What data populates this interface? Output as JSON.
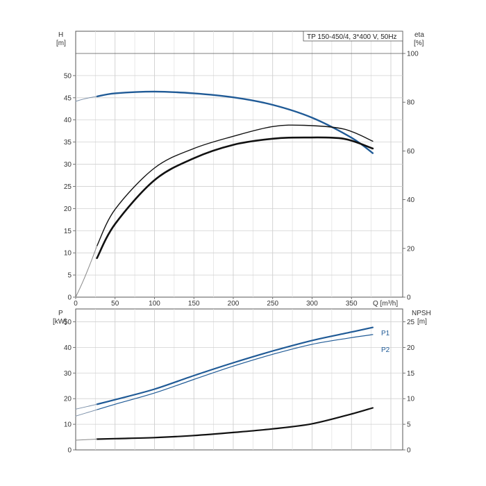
{
  "chart_data": [
    {
      "type": "line",
      "title": "TP 150-450/4, 3*400 V, 50Hz",
      "xlabel": "Q [m³/h]",
      "x_ticks": [
        0,
        50,
        100,
        150,
        200,
        250,
        300,
        350
      ],
      "xlim": [
        0,
        415
      ],
      "left_axis": {
        "name": "H",
        "unit": "[m]",
        "ylim": [
          0,
          55
        ],
        "ticks": [
          0,
          5,
          10,
          15,
          20,
          25,
          30,
          35,
          40,
          45,
          50
        ]
      },
      "right_axis": {
        "name": "eta",
        "unit": "[%]",
        "ylim": [
          0,
          100
        ],
        "ticks": [
          0,
          20,
          40,
          60,
          80,
          100
        ]
      },
      "grid": true,
      "series": [
        {
          "axis": "left",
          "color": "#1f5a96",
          "width": 2.4,
          "style": "operating",
          "x": [
            27,
            50,
            100,
            150,
            200,
            250,
            300,
            350,
            377
          ],
          "y": [
            45.3,
            46.0,
            46.4,
            46.0,
            45.1,
            43.4,
            40.5,
            36.0,
            32.5
          ]
        },
        {
          "axis": "left",
          "color": "#7a8fa8",
          "width": 1.0,
          "style": "extension",
          "x": [
            0,
            10,
            20,
            27
          ],
          "y": [
            44.2,
            44.7,
            45.1,
            45.3
          ]
        },
        {
          "axis": "right",
          "color": "#111111",
          "width": 1.4,
          "style": "operating",
          "x": [
            27,
            50,
            100,
            150,
            200,
            250,
            290,
            340,
            377
          ],
          "y": [
            21,
            36,
            53,
            61,
            66,
            70,
            70.5,
            69,
            64
          ]
        },
        {
          "axis": "right",
          "color": "#111111",
          "width": 2.6,
          "style": "operating",
          "x": [
            27,
            50,
            100,
            150,
            200,
            250,
            290,
            340,
            377
          ],
          "y": [
            16,
            30,
            48,
            57,
            62.5,
            65,
            65.5,
            65,
            61
          ]
        },
        {
          "axis": "right",
          "color": "#888888",
          "width": 1.0,
          "style": "extension",
          "x": [
            0,
            10,
            20,
            27
          ],
          "y": [
            0,
            7,
            15,
            21
          ]
        }
      ]
    },
    {
      "type": "line",
      "title": "",
      "xlabel": "",
      "x_ticks": [
        0,
        50,
        100,
        150,
        200,
        250,
        300,
        350
      ],
      "xlim": [
        0,
        415
      ],
      "left_axis": {
        "name": "P",
        "unit": "[kW]",
        "ylim": [
          0,
          55
        ],
        "ticks": [
          0,
          10,
          20,
          30,
          40,
          50
        ]
      },
      "right_axis": {
        "name": "NPSH",
        "unit": "[m]",
        "ylim": [
          0,
          27.5
        ],
        "ticks": [
          0,
          5,
          10,
          15,
          20,
          25
        ]
      },
      "grid": true,
      "series": [
        {
          "name": "P1",
          "axis": "left",
          "color": "#1f5a96",
          "width": 2.2,
          "style": "operating",
          "x": [
            27,
            50,
            100,
            150,
            200,
            250,
            300,
            350,
            377
          ],
          "y": [
            17.8,
            19.6,
            23.7,
            29.0,
            34.0,
            38.6,
            42.7,
            46.0,
            47.8
          ]
        },
        {
          "name": "P2",
          "axis": "left",
          "color": "#1f5a96",
          "width": 1.2,
          "style": "operating",
          "x": [
            27,
            50,
            100,
            150,
            200,
            250,
            300,
            350,
            377
          ],
          "y": [
            15.7,
            17.8,
            22.2,
            27.5,
            32.7,
            37.3,
            41.2,
            43.8,
            45.0
          ]
        },
        {
          "axis": "left",
          "color": "#7a8fa8",
          "width": 1.0,
          "style": "extension",
          "x": [
            0,
            27
          ],
          "y": [
            15.9,
            17.8
          ]
        },
        {
          "axis": "left",
          "color": "#7a8fa8",
          "width": 1.0,
          "style": "extension",
          "x": [
            0,
            27
          ],
          "y": [
            13.2,
            15.7
          ]
        },
        {
          "axis": "right",
          "color": "#111111",
          "width": 2.2,
          "style": "operating",
          "x": [
            27,
            50,
            100,
            150,
            200,
            250,
            300,
            350,
            377
          ],
          "y": [
            2.1,
            2.2,
            2.4,
            2.8,
            3.4,
            4.1,
            5.1,
            7.0,
            8.2
          ]
        },
        {
          "axis": "right",
          "color": "#888888",
          "width": 1.0,
          "style": "extension",
          "x": [
            0,
            27
          ],
          "y": [
            1.9,
            2.1
          ]
        }
      ]
    }
  ]
}
